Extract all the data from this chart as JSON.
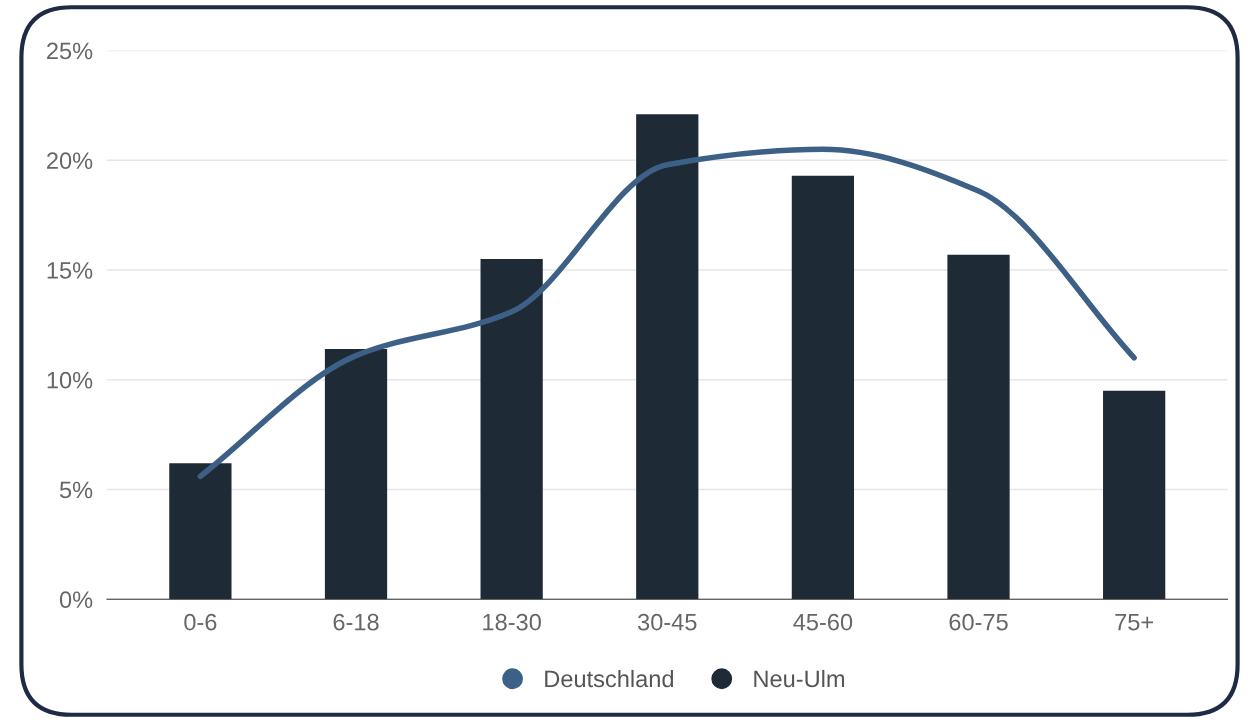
{
  "chart_data": {
    "type": "bar",
    "categories": [
      "0-6",
      "6-18",
      "18-30",
      "30-45",
      "45-60",
      "60-75",
      "75+"
    ],
    "series": [
      {
        "name": "Deutschland",
        "type": "line",
        "color": "#3d6186",
        "values": [
          5.6,
          11.1,
          13.1,
          19.8,
          20.5,
          18.6,
          11.0
        ]
      },
      {
        "name": "Neu-Ulm",
        "color": "#1f2a37",
        "values": [
          6.2,
          11.4,
          15.5,
          22.1,
          19.3,
          15.7,
          9.5
        ]
      }
    ],
    "ylim": [
      0,
      25
    ],
    "yticks": [
      {
        "value": 0,
        "label": "0%"
      },
      {
        "value": 5,
        "label": "5%"
      },
      {
        "value": 10,
        "label": "10%"
      },
      {
        "value": 15,
        "label": "15%"
      },
      {
        "value": 20,
        "label": "20%"
      },
      {
        "value": 25,
        "label": "25%"
      }
    ],
    "grid": "y",
    "legend": "bottom",
    "marker": "none"
  }
}
